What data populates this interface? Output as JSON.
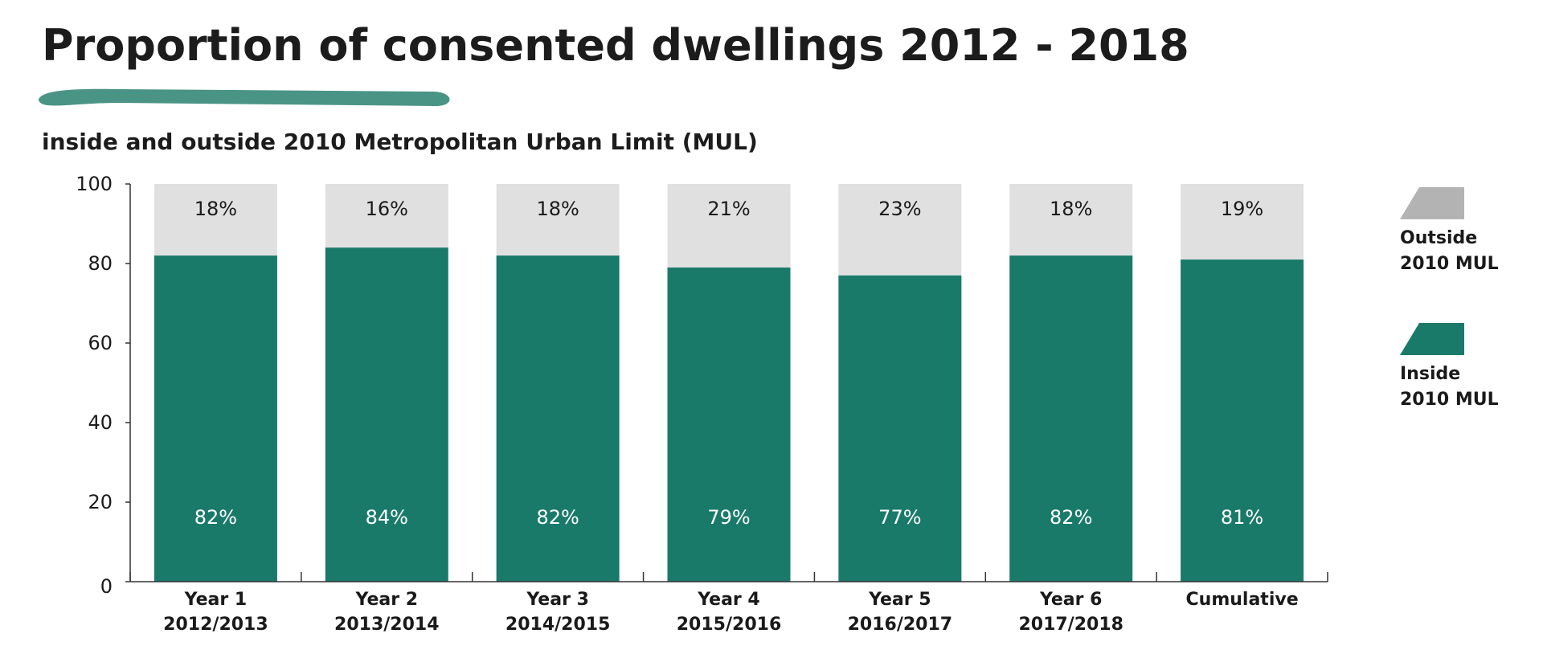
{
  "chart_data": {
    "type": "bar",
    "stacked": true,
    "title": "Proportion of consented dwellings 2012 - 2018",
    "subtitle": "inside and outside 2010 Metropolitan Urban Limit (MUL)",
    "categories": [
      [
        "Year 1",
        "2012/2013"
      ],
      [
        "Year 2",
        "2013/2014"
      ],
      [
        "Year 3",
        "2014/2015"
      ],
      [
        "Year 4",
        "2015/2016"
      ],
      [
        "Year 5",
        "2016/2017"
      ],
      [
        "Year 6",
        "2017/2018"
      ],
      [
        "Cumulative"
      ]
    ],
    "series": [
      {
        "name": "Inside 2010 MUL",
        "legend_lines": [
          "Inside",
          "2010 MUL"
        ],
        "color": "#1a7a6a",
        "values": [
          82,
          84,
          82,
          79,
          77,
          82,
          81
        ],
        "labels": [
          "82%",
          "84%",
          "82%",
          "79%",
          "77%",
          "82%",
          "81%"
        ]
      },
      {
        "name": "Outside 2010 MUL",
        "legend_lines": [
          "Outside",
          "2010 MUL"
        ],
        "color": "#e0e0e0",
        "legend_color": "#b3b3b3",
        "values": [
          18,
          16,
          18,
          21,
          23,
          18,
          19
        ],
        "labels": [
          "18%",
          "16%",
          "18%",
          "21%",
          "23%",
          "18%",
          "19%"
        ]
      }
    ],
    "y_ticks": [
      0,
      20,
      40,
      60,
      80,
      100
    ],
    "ylim": [
      0,
      100
    ],
    "xlabel": "",
    "ylabel": "",
    "grid": false,
    "legend_position": "right",
    "accent_color": "#4a9485"
  }
}
